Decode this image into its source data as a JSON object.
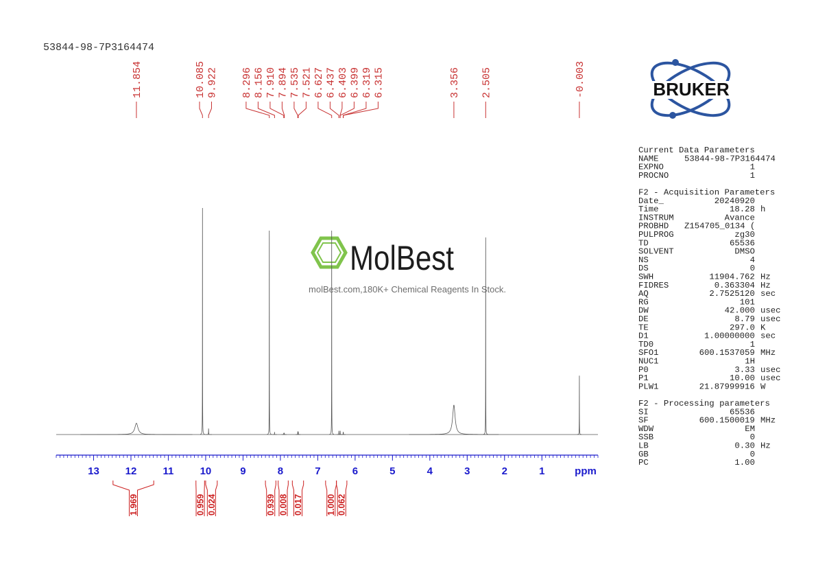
{
  "chart_data": {
    "type": "spectrum",
    "title": "53844-98-7P3164474",
    "xlabel": "ppm",
    "xlim": [
      14.0,
      -0.5
    ],
    "xticks": [
      13,
      12,
      11,
      10,
      9,
      8,
      7,
      6,
      5,
      4,
      3,
      2,
      1
    ],
    "minor_tick_step": 0.1,
    "ylim": [
      0,
      100
    ],
    "color": "#555555",
    "peaks": {
      "x": [
        11.854,
        10.085,
        9.922,
        8.296,
        8.156,
        7.91,
        7.894,
        7.535,
        7.521,
        6.627,
        6.437,
        6.403,
        6.399,
        6.319,
        6.315,
        3.356,
        2.505,
        -0.003
      ],
      "heights": [
        5,
        100,
        2.5,
        90,
        1,
        0.6,
        0.6,
        1.2,
        1.2,
        90,
        1.5,
        1.5,
        1.5,
        1,
        1,
        13,
        87,
        26
      ],
      "widths": [
        0.05,
        0.002,
        0.003,
        0.002,
        0.002,
        0.002,
        0.002,
        0.002,
        0.002,
        0.002,
        0.002,
        0.002,
        0.002,
        0.002,
        0.002,
        0.04,
        0.002,
        0.002
      ]
    },
    "peak_labels": [
      11.854,
      10.085,
      9.922,
      8.296,
      8.156,
      {
        "value": 7.91,
        "label": "7.910"
      },
      7.894,
      7.535,
      7.521,
      6.627,
      6.437,
      6.403,
      6.399,
      6.319,
      6.315,
      3.356,
      2.505,
      -0.003
    ],
    "integrals": {
      "ranges": [
        [
          12.48,
          11.39
        ],
        [
          10.26,
          10.03
        ],
        [
          10.0,
          9.69
        ],
        [
          8.4,
          8.12
        ],
        [
          8.06,
          7.79
        ],
        [
          7.68,
          7.38
        ],
        [
          6.79,
          6.5
        ],
        [
          6.5,
          6.22
        ]
      ],
      "values": [
        1.969,
        0.959,
        0.024,
        0.939,
        0.008,
        0.017,
        1,
        0.062
      ],
      "value_labels": [
        "1.969",
        "0.959",
        "0.024",
        "0.939",
        "0.008",
        "0.017",
        "1.000",
        "0.062"
      ]
    }
  },
  "logo": "BRUKER",
  "watermark": {
    "name": "MolBest",
    "tagline": "molBest.com,180K+ Chemical Reagents In Stock."
  },
  "parameters": [
    {
      "title": "Current Data Parameters",
      "rows": [
        [
          "NAME",
          "53844-98-7P3164474"
        ],
        [
          "EXPNO",
          "1"
        ],
        [
          "PROCNO",
          "1"
        ]
      ]
    },
    {
      "title": "F2 - Acquisition Parameters",
      "rows": [
        [
          "Date_",
          "20240920"
        ],
        [
          "Time",
          "18.28",
          "h"
        ],
        [
          "INSTRUM",
          "Avance"
        ],
        [
          "PROBHD",
          "Z154705_0134 ("
        ],
        [
          "PULPROG",
          "zg30"
        ],
        [
          "TD",
          "65536"
        ],
        [
          "SOLVENT",
          "DMSO"
        ],
        [
          "NS",
          "4"
        ],
        [
          "DS",
          "0"
        ],
        [
          "SWH",
          "11904.762",
          "Hz"
        ],
        [
          "FIDRES",
          "0.363304",
          "Hz"
        ],
        [
          "AQ",
          "2.7525120",
          "sec"
        ],
        [
          "RG",
          "101"
        ],
        [
          "DW",
          "42.000",
          "usec"
        ],
        [
          "DE",
          "8.79",
          "usec"
        ],
        [
          "TE",
          "297.0",
          "K"
        ],
        [
          "D1",
          "1.00000000",
          "sec"
        ],
        [
          "TD0",
          "1"
        ],
        [
          "SFO1",
          "600.1537059",
          "MHz"
        ],
        [
          "NUC1",
          "1H"
        ],
        [
          "P0",
          "3.33",
          "usec"
        ],
        [
          "P1",
          "10.00",
          "usec"
        ],
        [
          "PLW1",
          "21.87999916",
          "W"
        ]
      ]
    },
    {
      "title": "F2 - Processing parameters",
      "rows": [
        [
          "SI",
          "65536"
        ],
        [
          "SF",
          "600.1500019",
          "MHz"
        ],
        [
          "WDW",
          "EM"
        ],
        [
          "SSB",
          "0"
        ],
        [
          "LB",
          "0.30",
          "Hz"
        ],
        [
          "GB",
          "0"
        ],
        [
          "PC",
          "1.00"
        ]
      ]
    }
  ]
}
